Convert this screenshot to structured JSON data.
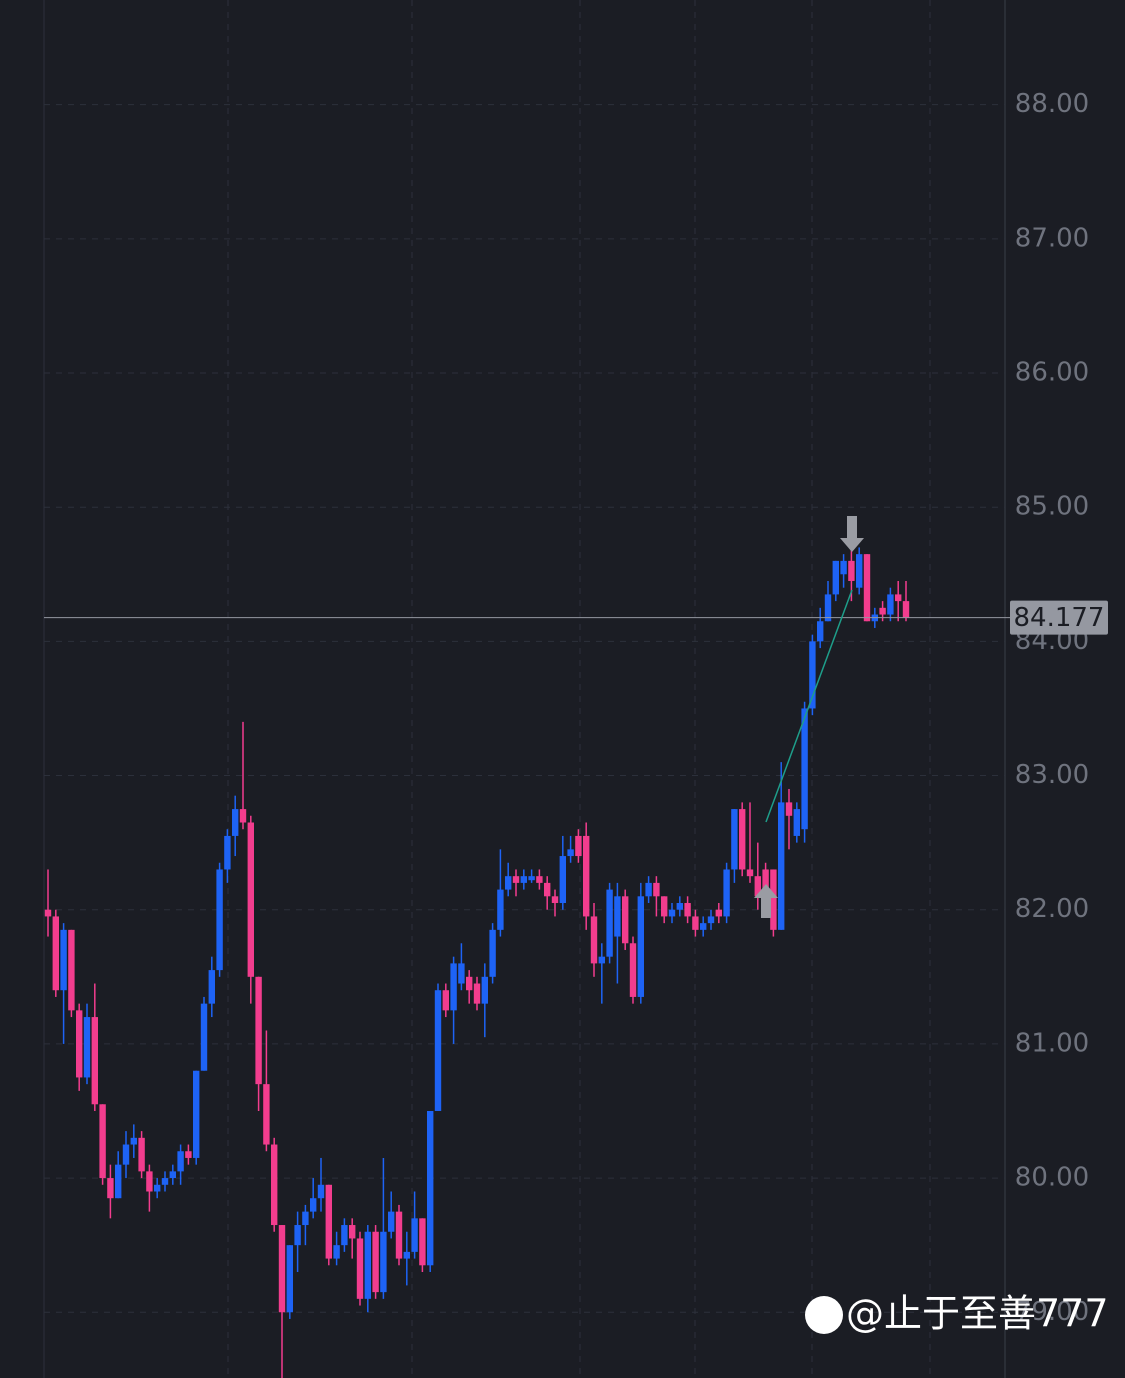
{
  "chart_data": {
    "type": "candlestick",
    "open": [
      82.0,
      81.95,
      81.4,
      81.85,
      81.25,
      80.75,
      81.2,
      80.55,
      80.0,
      79.85,
      80.1,
      80.25,
      80.3,
      80.05,
      79.9,
      79.95,
      80.0,
      80.05,
      80.2,
      80.15,
      80.8,
      81.3,
      81.55,
      82.3,
      82.55,
      82.75,
      82.65,
      81.5,
      80.7,
      80.25,
      79.65,
      79.0,
      79.5,
      79.65,
      79.75,
      79.85,
      79.95,
      79.4,
      79.5,
      79.65,
      79.55,
      79.1,
      79.6,
      79.15,
      79.6,
      79.75,
      79.4,
      79.45,
      79.7,
      79.35,
      80.5,
      81.4,
      81.25,
      81.45,
      81.5,
      81.45,
      81.3,
      81.5,
      81.85,
      82.15,
      82.25,
      82.2,
      82.22,
      82.25,
      82.2,
      82.1,
      82.05,
      82.4,
      82.55,
      82.55,
      81.95,
      81.6,
      81.65,
      81.8,
      82.1,
      81.75,
      81.35,
      82.1,
      82.2,
      82.1,
      81.95,
      82.0,
      82.05,
      81.95,
      81.85,
      81.9,
      82.0,
      81.95,
      82.3,
      82.75,
      82.3,
      82.25,
      82.3,
      82.3,
      81.85,
      82.8,
      82.55,
      82.6,
      83.5,
      84.0,
      84.15,
      84.35,
      84.5,
      84.6,
      84.4,
      84.65,
      84.15,
      84.25,
      84.2,
      84.35,
      84.3
    ],
    "high": [
      82.3,
      82.0,
      81.9,
      81.85,
      81.3,
      81.3,
      81.45,
      80.55,
      80.1,
      80.2,
      80.35,
      80.4,
      80.35,
      80.1,
      80.0,
      80.05,
      80.1,
      80.25,
      80.25,
      80.8,
      81.35,
      81.65,
      82.35,
      82.6,
      82.85,
      83.4,
      82.7,
      81.5,
      81.1,
      80.3,
      79.65,
      79.5,
      79.75,
      79.8,
      80.0,
      80.15,
      79.95,
      79.6,
      79.7,
      79.7,
      79.6,
      79.65,
      79.65,
      80.15,
      79.9,
      79.8,
      79.6,
      79.9,
      79.7,
      80.5,
      81.45,
      81.45,
      81.65,
      81.75,
      81.55,
      81.5,
      81.6,
      81.9,
      82.45,
      82.35,
      82.3,
      82.3,
      82.3,
      82.3,
      82.25,
      82.15,
      82.55,
      82.55,
      82.6,
      82.65,
      82.05,
      81.75,
      82.2,
      82.2,
      82.15,
      81.8,
      82.2,
      82.25,
      82.25,
      82.1,
      82.05,
      82.1,
      82.1,
      82.0,
      81.95,
      82.0,
      82.05,
      82.35,
      82.75,
      82.8,
      82.8,
      82.5,
      82.35,
      82.3,
      83.1,
      82.9,
      82.8,
      83.55,
      84.05,
      84.25,
      84.45,
      84.6,
      84.65,
      84.7,
      84.7,
      84.65,
      84.25,
      84.3,
      84.4,
      84.45,
      84.45
    ],
    "low": [
      81.8,
      81.35,
      81.0,
      81.2,
      80.65,
      80.7,
      80.5,
      79.95,
      79.7,
      79.85,
      80.0,
      80.15,
      80.0,
      79.75,
      79.85,
      79.9,
      79.95,
      79.95,
      80.1,
      80.1,
      80.8,
      81.2,
      81.5,
      82.2,
      82.4,
      82.6,
      81.3,
      80.5,
      80.2,
      79.6,
      78.5,
      78.95,
      79.3,
      79.5,
      79.7,
      79.75,
      79.35,
      79.35,
      79.45,
      79.4,
      79.05,
      79.0,
      79.1,
      79.1,
      79.55,
      79.35,
      79.2,
      79.4,
      79.3,
      79.3,
      80.5,
      81.2,
      81.0,
      81.4,
      81.3,
      81.25,
      81.05,
      81.45,
      81.8,
      82.1,
      82.1,
      82.15,
      82.2,
      82.15,
      82.0,
      81.95,
      82.0,
      82.35,
      82.35,
      81.85,
      81.5,
      81.3,
      81.6,
      81.45,
      81.7,
      81.3,
      81.3,
      82.05,
      81.95,
      81.9,
      81.9,
      81.95,
      81.9,
      81.8,
      81.8,
      81.85,
      81.9,
      81.9,
      82.2,
      82.25,
      82.2,
      82.0,
      82.0,
      81.8,
      81.85,
      82.45,
      82.5,
      82.5,
      83.45,
      83.95,
      84.15,
      84.3,
      84.4,
      84.3,
      84.35,
      84.15,
      84.1,
      84.15,
      84.15,
      84.15,
      84.15
    ],
    "close": [
      81.95,
      81.4,
      81.85,
      81.25,
      80.75,
      81.2,
      80.55,
      80.0,
      79.85,
      80.1,
      80.25,
      80.3,
      80.05,
      79.9,
      79.95,
      80.0,
      80.05,
      80.2,
      80.15,
      80.8,
      81.3,
      81.55,
      82.3,
      82.55,
      82.75,
      82.65,
      81.5,
      80.7,
      80.25,
      79.65,
      79.0,
      79.5,
      79.65,
      79.75,
      79.85,
      79.95,
      79.4,
      79.5,
      79.65,
      79.55,
      79.1,
      79.6,
      79.15,
      79.6,
      79.75,
      79.4,
      79.45,
      79.7,
      79.35,
      80.5,
      81.4,
      81.25,
      81.6,
      81.6,
      81.4,
      81.3,
      81.5,
      81.85,
      82.15,
      82.25,
      82.2,
      82.25,
      82.25,
      82.2,
      82.1,
      82.05,
      82.4,
      82.45,
      82.4,
      81.95,
      81.6,
      81.65,
      82.15,
      82.1,
      81.75,
      81.35,
      82.1,
      82.2,
      82.1,
      81.95,
      82.0,
      82.05,
      81.95,
      81.85,
      81.9,
      81.95,
      81.95,
      82.3,
      82.75,
      82.3,
      82.25,
      82.1,
      82.1,
      81.85,
      82.8,
      82.7,
      82.75,
      83.5,
      84.0,
      84.15,
      84.35,
      84.6,
      84.6,
      84.45,
      84.65,
      84.15,
      84.2,
      84.2,
      84.35,
      84.3,
      84.177
    ],
    "up_color": "#1e63f5",
    "down_color": "#f23d8e",
    "ylim": [
      78.51,
      88.78
    ],
    "yticks": [
      {
        "value": 79,
        "label": "79.00"
      },
      {
        "value": 80,
        "label": "80.00"
      },
      {
        "value": 81,
        "label": "81.00"
      },
      {
        "value": 82,
        "label": "82.00"
      },
      {
        "value": 83,
        "label": "83.00"
      },
      {
        "value": 84,
        "label": "84.00"
      },
      {
        "value": 85,
        "label": "85.00"
      },
      {
        "value": 86,
        "label": "86.00"
      },
      {
        "value": 87,
        "label": "87.00"
      },
      {
        "value": 88,
        "label": "88.00"
      }
    ],
    "grid": true,
    "last_price": 84.177,
    "watermark": "@止于至善777"
  }
}
